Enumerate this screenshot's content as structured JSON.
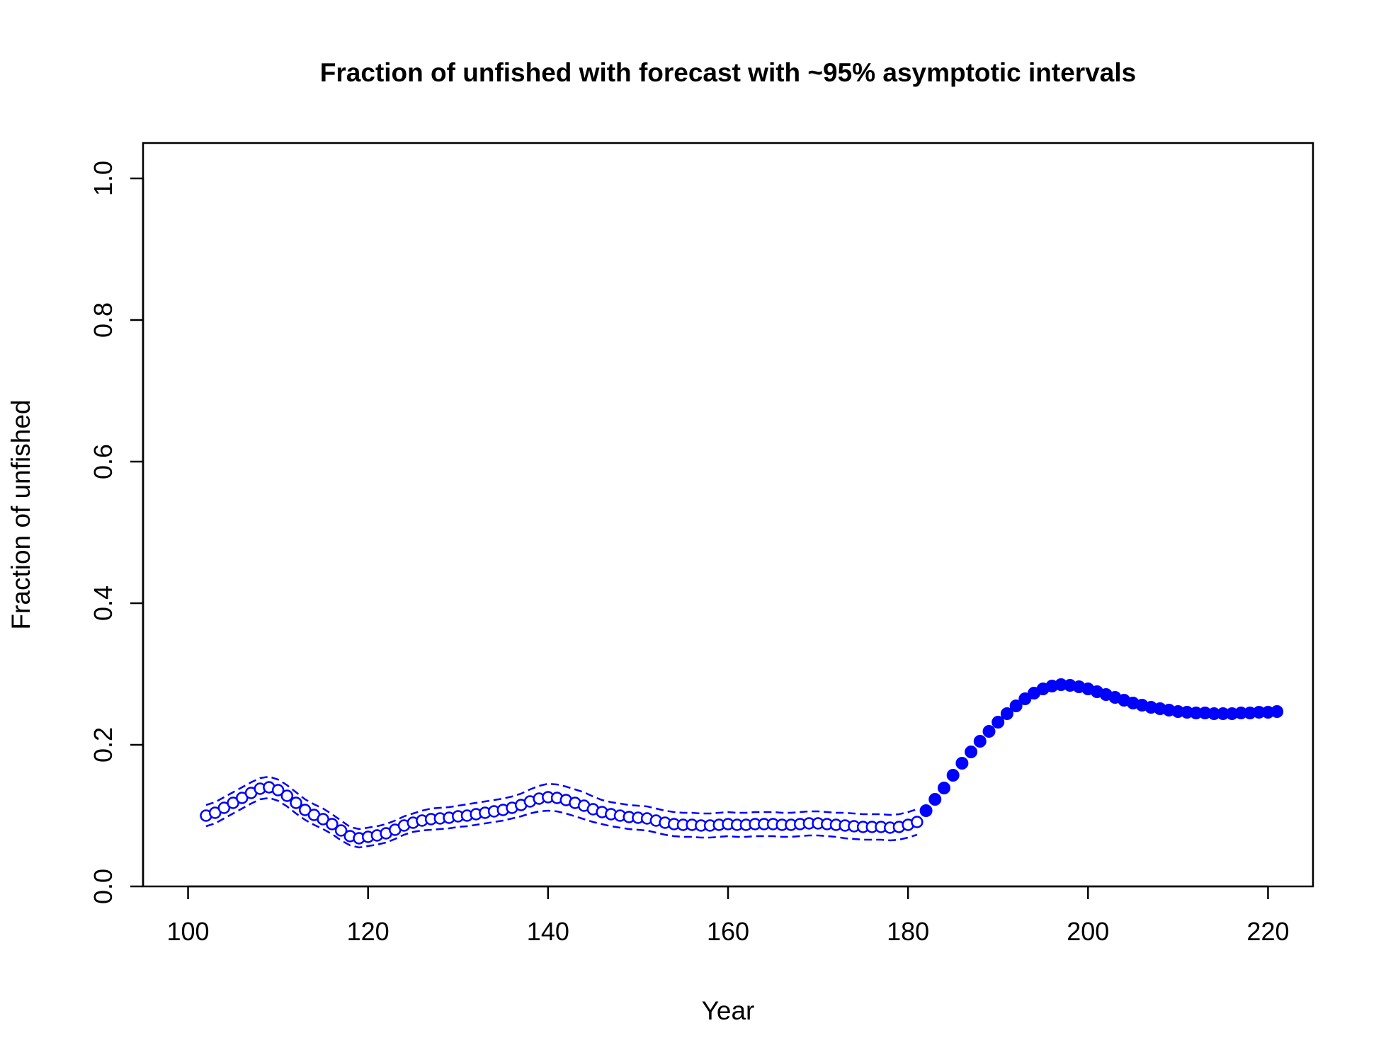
{
  "chart_data": {
    "type": "line",
    "title": "Fraction of unfished with forecast with ~95% asymptotic intervals",
    "xlabel": "Year",
    "ylabel": "Fraction of unfished",
    "xlim": [
      95,
      225
    ],
    "ylim": [
      0,
      1.05
    ],
    "x_ticks": [
      100,
      120,
      140,
      160,
      180,
      200,
      220
    ],
    "x_tick_labels": [
      "100",
      "120",
      "140",
      "160",
      "180",
      "200",
      "220"
    ],
    "y_ticks": [
      0,
      0.2,
      0.4,
      0.6,
      0.8,
      1.0
    ],
    "y_tick_labels": [
      "0.0",
      "0.2",
      "0.4",
      "0.6",
      "0.8",
      "1.0"
    ],
    "grid": false,
    "legend": "none",
    "color": "#0000ff",
    "series": [
      {
        "style": "open-circles-with-dashed-interval",
        "x": [
          102,
          103,
          104,
          105,
          106,
          107,
          108,
          109,
          110,
          111,
          112,
          113,
          114,
          115,
          116,
          117,
          118,
          119,
          120,
          121,
          122,
          123,
          124,
          125,
          126,
          127,
          128,
          129,
          130,
          131,
          132,
          133,
          134,
          135,
          136,
          137,
          138,
          139,
          140,
          141,
          142,
          143,
          144,
          145,
          146,
          147,
          148,
          149,
          150,
          151,
          152,
          153,
          154,
          155,
          156,
          157,
          158,
          159,
          160,
          161,
          162,
          163,
          164,
          165,
          166,
          167,
          168,
          169,
          170,
          171,
          172,
          173,
          174,
          175,
          176,
          177,
          178,
          179,
          180,
          181
        ],
        "y": [
          0.1,
          0.104,
          0.111,
          0.118,
          0.125,
          0.132,
          0.138,
          0.14,
          0.136,
          0.128,
          0.118,
          0.108,
          0.101,
          0.095,
          0.088,
          0.079,
          0.071,
          0.068,
          0.07,
          0.072,
          0.075,
          0.08,
          0.086,
          0.09,
          0.093,
          0.095,
          0.096,
          0.097,
          0.099,
          0.1,
          0.102,
          0.104,
          0.106,
          0.108,
          0.111,
          0.115,
          0.12,
          0.124,
          0.126,
          0.125,
          0.122,
          0.118,
          0.114,
          0.109,
          0.105,
          0.102,
          0.1,
          0.098,
          0.097,
          0.096,
          0.093,
          0.09,
          0.088,
          0.087,
          0.087,
          0.086,
          0.086,
          0.087,
          0.088,
          0.087,
          0.087,
          0.088,
          0.088,
          0.088,
          0.087,
          0.087,
          0.088,
          0.089,
          0.089,
          0.088,
          0.087,
          0.086,
          0.085,
          0.084,
          0.084,
          0.084,
          0.083,
          0.084,
          0.087,
          0.091
        ],
        "lower": [
          0.085,
          0.089,
          0.096,
          0.103,
          0.11,
          0.117,
          0.123,
          0.125,
          0.121,
          0.113,
          0.103,
          0.094,
          0.087,
          0.081,
          0.074,
          0.065,
          0.058,
          0.055,
          0.057,
          0.059,
          0.062,
          0.067,
          0.073,
          0.077,
          0.079,
          0.08,
          0.081,
          0.082,
          0.084,
          0.085,
          0.087,
          0.089,
          0.091,
          0.093,
          0.096,
          0.099,
          0.103,
          0.106,
          0.107,
          0.106,
          0.103,
          0.099,
          0.095,
          0.091,
          0.088,
          0.085,
          0.083,
          0.081,
          0.08,
          0.079,
          0.076,
          0.073,
          0.071,
          0.07,
          0.07,
          0.069,
          0.069,
          0.07,
          0.071,
          0.07,
          0.07,
          0.071,
          0.071,
          0.071,
          0.07,
          0.07,
          0.071,
          0.072,
          0.072,
          0.071,
          0.07,
          0.068,
          0.067,
          0.066,
          0.066,
          0.066,
          0.065,
          0.066,
          0.069,
          0.073
        ],
        "upper": [
          0.115,
          0.119,
          0.126,
          0.133,
          0.14,
          0.147,
          0.153,
          0.155,
          0.151,
          0.143,
          0.133,
          0.123,
          0.116,
          0.11,
          0.102,
          0.093,
          0.084,
          0.081,
          0.083,
          0.085,
          0.088,
          0.093,
          0.099,
          0.103,
          0.107,
          0.11,
          0.111,
          0.112,
          0.114,
          0.116,
          0.118,
          0.12,
          0.122,
          0.124,
          0.127,
          0.131,
          0.137,
          0.142,
          0.145,
          0.144,
          0.141,
          0.137,
          0.133,
          0.127,
          0.122,
          0.119,
          0.117,
          0.115,
          0.114,
          0.113,
          0.11,
          0.107,
          0.105,
          0.104,
          0.104,
          0.103,
          0.103,
          0.104,
          0.105,
          0.104,
          0.104,
          0.105,
          0.105,
          0.105,
          0.104,
          0.104,
          0.105,
          0.106,
          0.106,
          0.105,
          0.104,
          0.104,
          0.103,
          0.102,
          0.102,
          0.102,
          0.101,
          0.102,
          0.105,
          0.109
        ]
      },
      {
        "style": "filled-circles",
        "x": [
          182,
          183,
          184,
          185,
          186,
          187,
          188,
          189,
          190,
          191,
          192,
          193,
          194,
          195,
          196,
          197,
          198,
          199,
          200,
          201,
          202,
          203,
          204,
          205,
          206,
          207,
          208,
          209,
          210,
          211,
          212,
          213,
          214,
          215,
          216,
          217,
          218,
          219,
          220,
          221
        ],
        "y": [
          0.107,
          0.123,
          0.139,
          0.157,
          0.174,
          0.19,
          0.205,
          0.219,
          0.232,
          0.244,
          0.255,
          0.265,
          0.273,
          0.279,
          0.283,
          0.285,
          0.284,
          0.282,
          0.279,
          0.275,
          0.271,
          0.267,
          0.263,
          0.259,
          0.256,
          0.253,
          0.251,
          0.249,
          0.247,
          0.246,
          0.245,
          0.245,
          0.244,
          0.244,
          0.244,
          0.245,
          0.245,
          0.246,
          0.246,
          0.247
        ]
      }
    ]
  }
}
